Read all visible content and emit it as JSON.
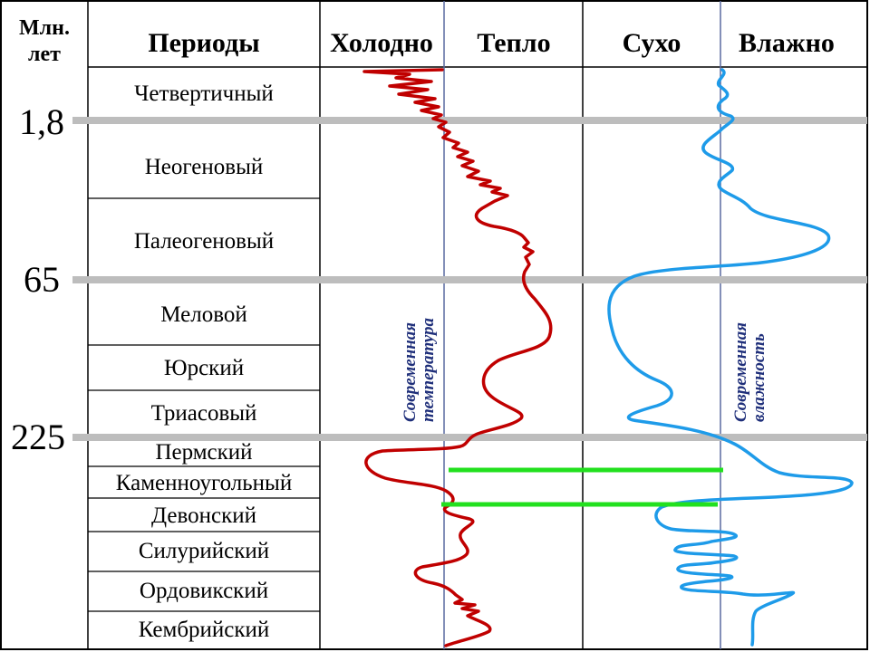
{
  "headers": {
    "mya_line1": "Млн.",
    "mya_line2": "лет",
    "periods": "Периоды",
    "cold": "Холодно",
    "warm": "Тепло",
    "dry": "Сухо",
    "wet": "Влажно"
  },
  "periods": [
    "Четвертичный",
    "Неогеновый",
    "Палеогеновый",
    "Меловой",
    "Юрский",
    "Триасовый",
    "Пермский",
    "Каменноугольный",
    "Девонский",
    "Силурийский",
    "Ордовикский",
    "Кембрийский"
  ],
  "ages": [
    "1,8",
    "65",
    "225"
  ],
  "annotations": {
    "modern_temperature": [
      "Современная",
      "температура"
    ],
    "modern_humidity": [
      "Современная",
      "влажность"
    ]
  },
  "colors": {
    "temperature_curve": "#c00000",
    "humidity_curve": "#1e9be9",
    "boundary_lines": "#bdbdbd",
    "highlight_bars": "#22e01e",
    "reference_lines": "#5a6aa0"
  },
  "icons": []
}
